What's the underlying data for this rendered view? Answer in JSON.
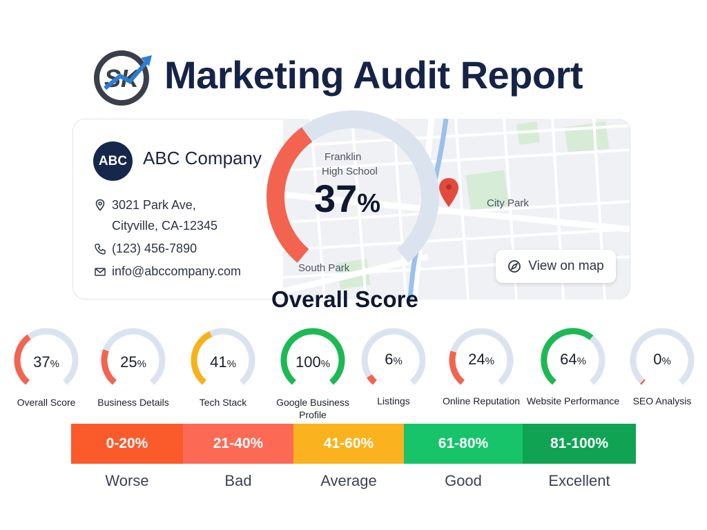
{
  "header": {
    "logo_text": "SK",
    "title": "Marketing Audit Report"
  },
  "business": {
    "avatar_initials": "ABC",
    "name": "ABC Company",
    "address_line1": "3021 Park Ave,",
    "address_line2": "Cityville, CA-12345",
    "phone": "(123) 456-7890",
    "email": "info@abccompany.com"
  },
  "map": {
    "labels": {
      "franklin_line1": "Franklin",
      "franklin_line2": "High School",
      "city_park": "City Park",
      "south_park": "South Park"
    },
    "view_button": "View on map"
  },
  "overall": {
    "value": "37",
    "unit": "%",
    "label": "Overall Score",
    "fraction": 0.37,
    "color": "#f26450"
  },
  "gauges": [
    {
      "value": "37",
      "unit": "%",
      "label": "Overall Score",
      "fraction": 0.37,
      "color": "#f26450"
    },
    {
      "value": "25",
      "unit": "%",
      "label": "Business Details",
      "fraction": 0.25,
      "color": "#f26450"
    },
    {
      "value": "41",
      "unit": "%",
      "label": "Tech Stack",
      "fraction": 0.41,
      "color": "#f7b21b"
    },
    {
      "value": "100",
      "unit": "%",
      "label": "Google Business Profile",
      "fraction": 1.0,
      "color": "#1db954"
    },
    {
      "value": "6",
      "unit": "%",
      "label": "Listings",
      "fraction": 0.06,
      "color": "#f26450"
    },
    {
      "value": "24",
      "unit": "%",
      "label": "Online Reputation",
      "fraction": 0.24,
      "color": "#f26450"
    },
    {
      "value": "64",
      "unit": "%",
      "label": "Website Performance",
      "fraction": 0.64,
      "color": "#1db954"
    },
    {
      "value": "0",
      "unit": "%",
      "label": "SEO Analysis",
      "fraction": 0.0,
      "color": "#f26450"
    }
  ],
  "legend": [
    {
      "range": "0-20%",
      "label": "Worse",
      "color": "#fb5a2b"
    },
    {
      "range": "21-40%",
      "label": "Bad",
      "color": "#fc6a55"
    },
    {
      "range": "41-60%",
      "label": "Average",
      "color": "#fbb21f"
    },
    {
      "range": "61-80%",
      "label": "Good",
      "color": "#17c46a"
    },
    {
      "range": "81-100%",
      "label": "Excellent",
      "color": "#0fa353"
    }
  ],
  "colors": {
    "track": "#dbe3ee",
    "brand_navy": "#152446",
    "logo_blue": "#2d7dd2"
  },
  "icons": {
    "location": "map-pin-icon",
    "phone": "phone-icon",
    "email": "mail-icon",
    "compass": "compass-icon",
    "map_pin": "red-map-pin-icon"
  }
}
